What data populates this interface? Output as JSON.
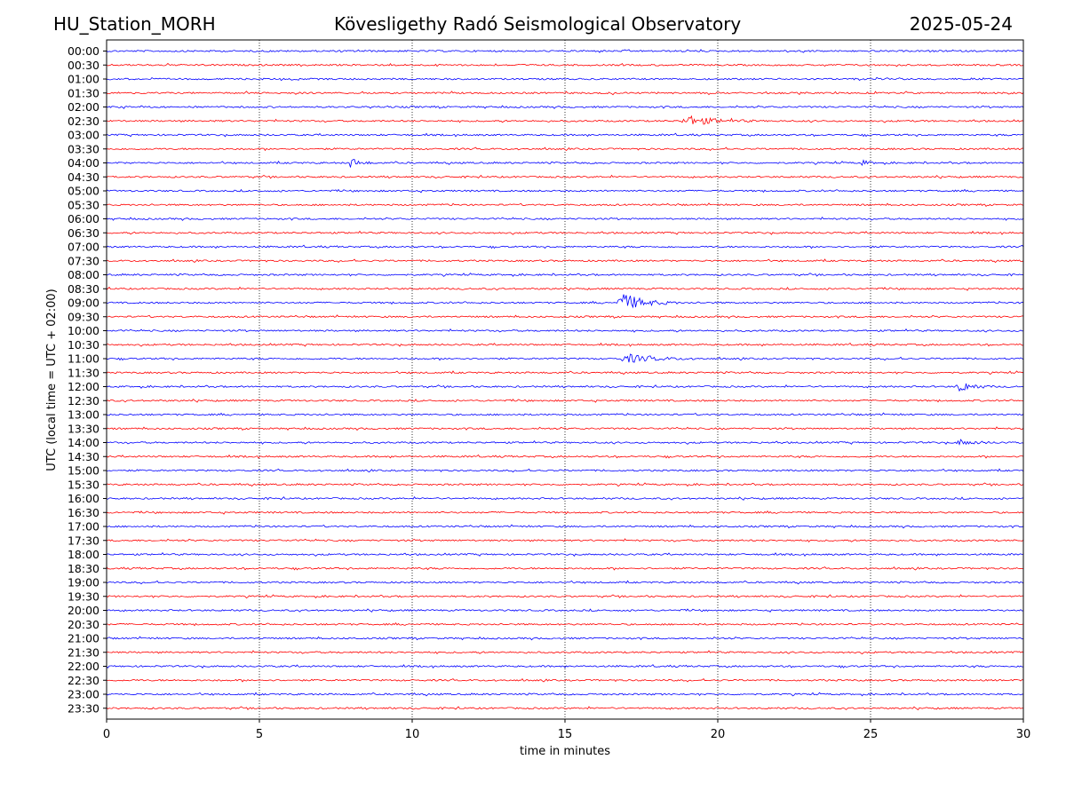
{
  "header": {
    "station": "HU_Station_MORH",
    "title": "Kövesligethy Radó Seismological Observatory",
    "date": "2025-05-24"
  },
  "chart_data": {
    "type": "line",
    "xlabel": "time in minutes",
    "ylabel": "UTC (local time = UTC + 02:00)",
    "xlim": [
      0,
      30
    ],
    "xticks": [
      "0",
      "5",
      "10",
      "15",
      "20",
      "25",
      "30"
    ],
    "x_gridlines": [
      5,
      10,
      15,
      20,
      25
    ],
    "grid": "vertical dotted",
    "row_labels": [
      "00:00",
      "00:30",
      "01:00",
      "01:30",
      "02:00",
      "02:30",
      "03:00",
      "03:30",
      "04:00",
      "04:30",
      "05:00",
      "05:30",
      "06:00",
      "06:30",
      "07:00",
      "07:30",
      "08:00",
      "08:30",
      "09:00",
      "09:30",
      "10:00",
      "10:30",
      "11:00",
      "11:30",
      "12:00",
      "12:30",
      "13:00",
      "13:30",
      "14:00",
      "14:30",
      "15:00",
      "15:30",
      "16:00",
      "16:30",
      "17:00",
      "17:30",
      "18:00",
      "18:30",
      "19:00",
      "19:30",
      "20:00",
      "20:30",
      "21:00",
      "21:30",
      "22:00",
      "22:30",
      "23:00",
      "23:30"
    ],
    "trace_colors": [
      "#0000ff",
      "#ff0000"
    ],
    "events": [
      {
        "row": "02:30",
        "start_min": 18.8,
        "duration_min": 2.5,
        "amplitude": 6
      },
      {
        "row": "04:00",
        "start_min": 7.9,
        "duration_min": 0.8,
        "amplitude": 6
      },
      {
        "row": "04:00",
        "start_min": 24.7,
        "duration_min": 0.5,
        "amplitude": 3
      },
      {
        "row": "09:00",
        "start_min": 16.7,
        "duration_min": 2.0,
        "amplitude": 11
      },
      {
        "row": "11:00",
        "start_min": 16.8,
        "duration_min": 2.5,
        "amplitude": 5
      },
      {
        "row": "12:00",
        "start_min": 27.8,
        "duration_min": 1.2,
        "amplitude": 7
      },
      {
        "row": "14:00",
        "start_min": 27.8,
        "duration_min": 1.5,
        "amplitude": 3
      }
    ]
  }
}
